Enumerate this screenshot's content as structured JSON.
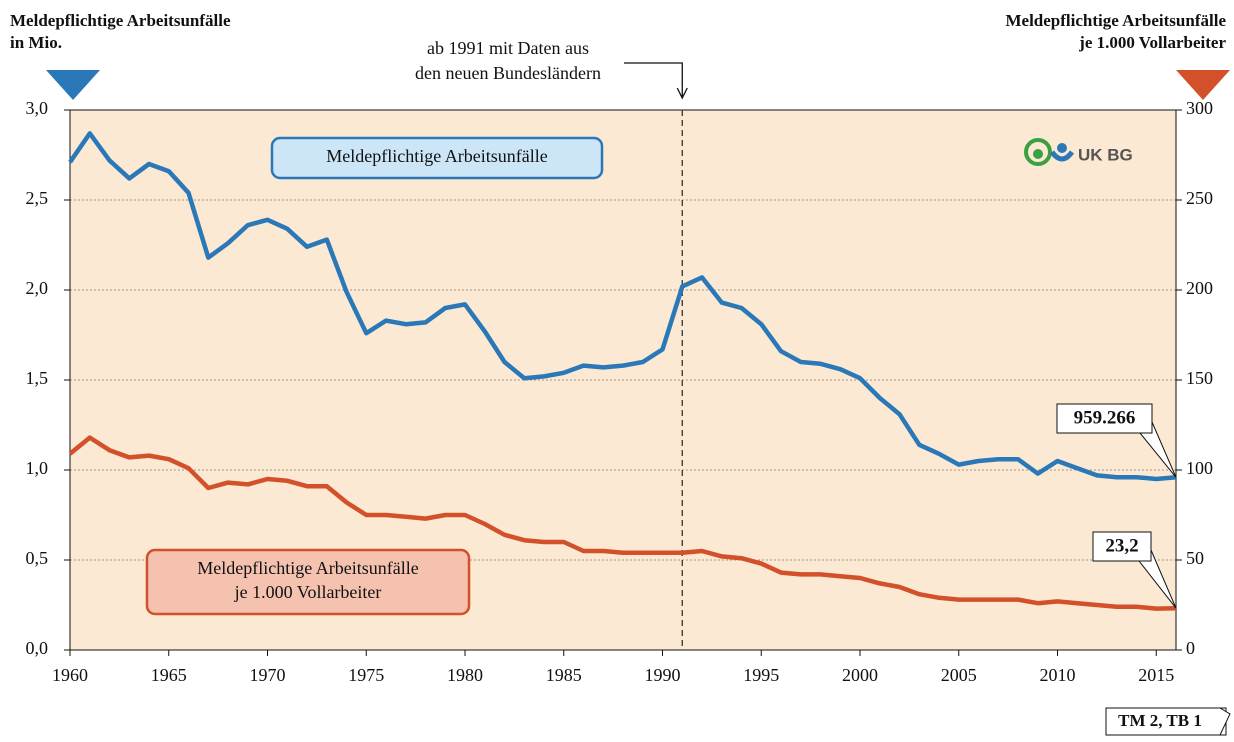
{
  "chart_data": {
    "type": "line",
    "y_title": [
      "Meldepflichtige Arbeitsunfälle",
      "in Mio."
    ],
    "y2_title": [
      "Meldepflichtige Arbeitsunfälle",
      "je 1.000 Vollarbeiter"
    ],
    "annotation": {
      "x": 1991,
      "text": [
        "ab 1991 mit Daten aus",
        "den neuen Bundesländern"
      ]
    },
    "logo": "UK BG",
    "footer": "TM 2, TB 1",
    "x": [
      1960,
      1961,
      1962,
      1963,
      1964,
      1965,
      1966,
      1967,
      1968,
      1969,
      1970,
      1971,
      1972,
      1973,
      1974,
      1975,
      1976,
      1977,
      1978,
      1979,
      1980,
      1981,
      1982,
      1983,
      1984,
      1985,
      1986,
      1987,
      1988,
      1989,
      1990,
      1991,
      1992,
      1993,
      1994,
      1995,
      1996,
      1997,
      1998,
      1999,
      2000,
      2001,
      2002,
      2003,
      2004,
      2005,
      2006,
      2007,
      2008,
      2009,
      2010,
      2011,
      2012,
      2013,
      2014,
      2015,
      2016
    ],
    "xlim": [
      1960,
      2016
    ],
    "xticks": [
      1960,
      1965,
      1970,
      1975,
      1980,
      1985,
      1990,
      1995,
      2000,
      2005,
      2010,
      2015
    ],
    "ylim": [
      0,
      3
    ],
    "yticks": [
      {
        "value": 0,
        "label": "0,0"
      },
      {
        "value": 0.5,
        "label": "0,5"
      },
      {
        "value": 1,
        "label": "1,0"
      },
      {
        "value": 1.5,
        "label": "1,5"
      },
      {
        "value": 2,
        "label": "2,0"
      },
      {
        "value": 2.5,
        "label": "2,5"
      },
      {
        "value": 3,
        "label": "3,0"
      }
    ],
    "y2lim": [
      0,
      300
    ],
    "y2ticks": [
      0,
      50,
      100,
      150,
      200,
      250,
      300
    ],
    "grid": true,
    "series": [
      {
        "name": [
          "Meldepflichtige Arbeitsunfälle"
        ],
        "color": "#2b78b8",
        "legend_fill": "#cde6f7",
        "values": [
          2.71,
          2.87,
          2.72,
          2.62,
          2.7,
          2.66,
          2.54,
          2.18,
          2.26,
          2.36,
          2.39,
          2.34,
          2.24,
          2.28,
          1.99,
          1.76,
          1.83,
          1.81,
          1.82,
          1.9,
          1.92,
          1.77,
          1.6,
          1.51,
          1.52,
          1.54,
          1.58,
          1.57,
          1.58,
          1.6,
          1.67,
          2.02,
          2.07,
          1.93,
          1.9,
          1.81,
          1.66,
          1.6,
          1.59,
          1.56,
          1.51,
          1.4,
          1.31,
          1.14,
          1.09,
          1.03,
          1.05,
          1.06,
          1.06,
          0.98,
          1.05,
          1.01,
          0.97,
          0.96,
          0.96,
          0.95,
          0.959266
        ],
        "value_labels": [
          null,
          null,
          null,
          null,
          null,
          null,
          null,
          null,
          null,
          null,
          null,
          null,
          null,
          null,
          null,
          null,
          null,
          null,
          null,
          null,
          null,
          null,
          null,
          null,
          null,
          null,
          null,
          null,
          null,
          null,
          null,
          null,
          null,
          null,
          null,
          null,
          null,
          null,
          null,
          null,
          null,
          null,
          null,
          null,
          null,
          null,
          null,
          null,
          null,
          null,
          null,
          null,
          null,
          null,
          null,
          null,
          "959.266"
        ]
      },
      {
        "name": [
          "Meldepflichtige Arbeitsunfälle",
          "je 1.000 Vollarbeiter"
        ],
        "color": "#d2512a",
        "legend_fill": "#f5c2b0",
        "axis": "y2",
        "values": [
          109,
          118,
          111,
          107,
          108,
          106,
          101,
          90,
          93,
          92,
          95,
          94,
          91,
          91,
          82,
          75,
          75,
          74,
          73,
          75,
          75,
          70,
          64,
          61,
          60,
          60,
          55,
          55,
          54,
          54,
          54,
          54,
          55,
          52,
          51,
          48,
          43,
          42,
          42,
          41,
          40,
          37,
          35,
          31,
          29,
          28,
          28,
          28,
          28,
          26,
          27,
          26,
          25,
          24,
          24,
          23,
          23.2
        ],
        "value_labels": [
          null,
          null,
          null,
          null,
          null,
          null,
          null,
          null,
          null,
          null,
          null,
          null,
          null,
          null,
          null,
          null,
          null,
          null,
          null,
          null,
          null,
          null,
          null,
          null,
          null,
          null,
          null,
          null,
          null,
          null,
          null,
          null,
          null,
          null,
          null,
          null,
          null,
          null,
          null,
          null,
          null,
          null,
          null,
          null,
          null,
          null,
          null,
          null,
          null,
          null,
          null,
          null,
          null,
          null,
          null,
          null,
          "23,2"
        ]
      }
    ]
  }
}
